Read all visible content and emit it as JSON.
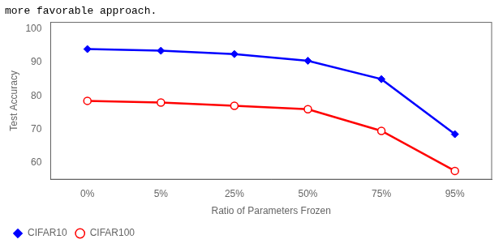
{
  "chart_data": {
    "type": "line",
    "title": "more favorable approach.",
    "categories": [
      "0%",
      "5%",
      "25%",
      "50%",
      "75%",
      "95%"
    ],
    "series": [
      {
        "name": "CIFAR10",
        "color": "#0000ff",
        "marker": "diamond",
        "values": [
          94.0,
          93.5,
          92.5,
          90.5,
          85.0,
          68.5
        ]
      },
      {
        "name": "CIFAR100",
        "color": "#ff0000",
        "marker": "open_circle",
        "values": [
          78.5,
          78.0,
          77.0,
          76.0,
          69.5,
          57.5
        ]
      }
    ],
    "xlabel": "Ratio of Parameters Frozen",
    "ylabel": "Test Accuracy",
    "ylim": [
      55,
      102
    ],
    "yticks": [
      60,
      70,
      80,
      90,
      100
    ],
    "legend": "lower left",
    "grid": false
  }
}
